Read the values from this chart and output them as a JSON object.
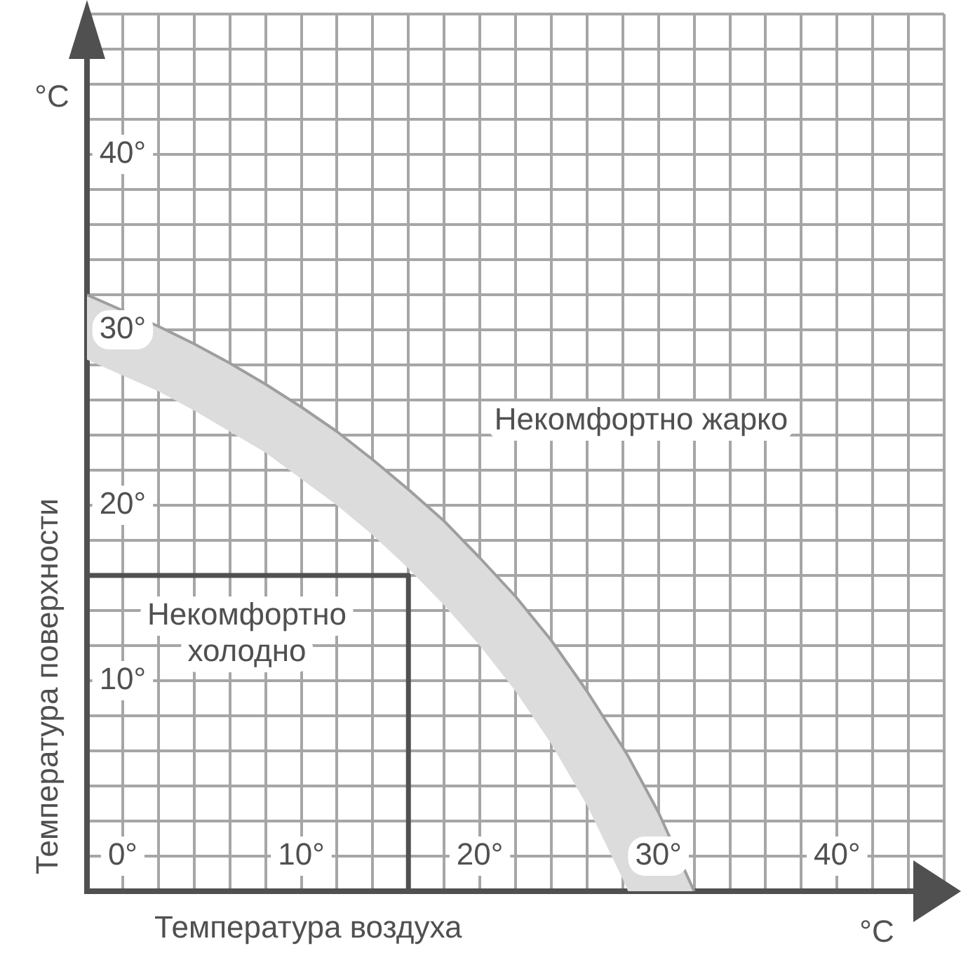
{
  "chart_data": {
    "type": "line",
    "xlabel": "Температура воздуха",
    "ylabel": "Температура поверхности",
    "xlim": [
      -2,
      46
    ],
    "ylim": [
      -2,
      48
    ],
    "xticks": [
      {
        "value": -2,
        "label": null
      },
      {
        "value": 0,
        "label": "0°"
      },
      {
        "value": 2,
        "label": null
      },
      {
        "value": 4,
        "label": null
      },
      {
        "value": 6,
        "label": null
      },
      {
        "value": 8,
        "label": null
      },
      {
        "value": 10,
        "label": "10°"
      },
      {
        "value": 12,
        "label": null
      },
      {
        "value": 14,
        "label": null
      },
      {
        "value": 16,
        "label": null
      },
      {
        "value": 18,
        "label": null
      },
      {
        "value": 20,
        "label": "20°"
      },
      {
        "value": 22,
        "label": null
      },
      {
        "value": 24,
        "label": null
      },
      {
        "value": 26,
        "label": null
      },
      {
        "value": 28,
        "label": null
      },
      {
        "value": 30,
        "label": "30°"
      },
      {
        "value": 32,
        "label": null
      },
      {
        "value": 34,
        "label": null
      },
      {
        "value": 36,
        "label": null
      },
      {
        "value": 38,
        "label": null
      },
      {
        "value": 40,
        "label": "40°"
      },
      {
        "value": 42,
        "label": null
      },
      {
        "value": 44,
        "label": null
      },
      {
        "value": 46,
        "label": null
      }
    ],
    "yticks": [
      {
        "value": -2,
        "label": null
      },
      {
        "value": 0,
        "label": null
      },
      {
        "value": 2,
        "label": null
      },
      {
        "value": 4,
        "label": null
      },
      {
        "value": 6,
        "label": null
      },
      {
        "value": 8,
        "label": null
      },
      {
        "value": 10,
        "label": "10°"
      },
      {
        "value": 12,
        "label": null
      },
      {
        "value": 14,
        "label": null
      },
      {
        "value": 16,
        "label": null
      },
      {
        "value": 18,
        "label": null
      },
      {
        "value": 20,
        "label": "20°"
      },
      {
        "value": 22,
        "label": null
      },
      {
        "value": 24,
        "label": null
      },
      {
        "value": 26,
        "label": null
      },
      {
        "value": 28,
        "label": null
      },
      {
        "value": 30,
        "label": "30°"
      },
      {
        "value": 32,
        "label": null
      },
      {
        "value": 34,
        "label": null
      },
      {
        "value": 36,
        "label": null
      },
      {
        "value": 38,
        "label": null
      },
      {
        "value": 40,
        "label": "40°"
      },
      {
        "value": 42,
        "label": null
      },
      {
        "value": 44,
        "label": null
      },
      {
        "value": 46,
        "label": null
      },
      {
        "value": 48,
        "label": null
      }
    ],
    "grid": true,
    "legend": false,
    "marker": "none",
    "series": [
      {
        "type": "line",
        "color": "#9e9e9e",
        "x": [
          -2,
          0,
          2,
          4,
          6,
          8,
          10,
          12,
          14,
          16,
          18,
          20,
          22,
          24,
          26,
          28,
          28.3,
          30,
          31,
          32
        ],
        "values": [
          32.0,
          31.1,
          30.2,
          29.2,
          28.1,
          26.9,
          25.6,
          24.2,
          22.6,
          20.9,
          19.1,
          17.0,
          14.8,
          12.3,
          9.4,
          6.2,
          5.7,
          2.5,
          null,
          -2
        ],
        "upper": [
          32.0,
          31.1,
          30.2,
          29.2,
          28.1,
          26.9,
          25.6,
          24.2,
          22.6,
          20.9,
          19.1,
          17.0,
          14.8,
          12.3,
          9.4,
          6.2,
          5.7,
          2.5,
          null,
          -2
        ],
        "lower": [
          28.3,
          27.4,
          26.5,
          25.4,
          24.2,
          23.0,
          21.5,
          20.0,
          18.3,
          16.4,
          14.3,
          12.0,
          9.4,
          6.4,
          2.9,
          -1.3,
          -2,
          -2,
          null,
          -2
        ]
      },
      {
        "type": "line",
        "color": "#505050",
        "x": [
          -2,
          16,
          16
        ],
        "values": [
          16,
          16,
          -2
        ]
      }
    ],
    "annotations": [
      "Некомфортно жарко",
      "Некомфортно\nхолодно",
      "°C",
      "°C"
    ]
  }
}
